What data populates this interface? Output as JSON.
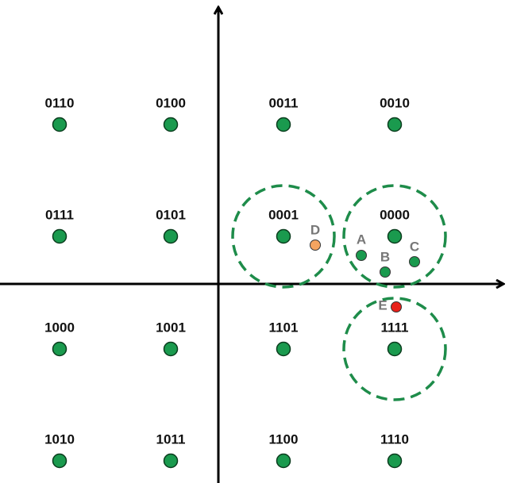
{
  "symbols": [
    [
      "0110",
      "0100",
      "0011",
      "0010"
    ],
    [
      "0111",
      "0101",
      "0001",
      "0000"
    ],
    [
      "1000",
      "1001",
      "1101",
      "1111"
    ],
    [
      "1010",
      "1011",
      "1100",
      "1110"
    ]
  ],
  "points": [
    "A",
    "B",
    "C",
    "D",
    "E"
  ]
}
